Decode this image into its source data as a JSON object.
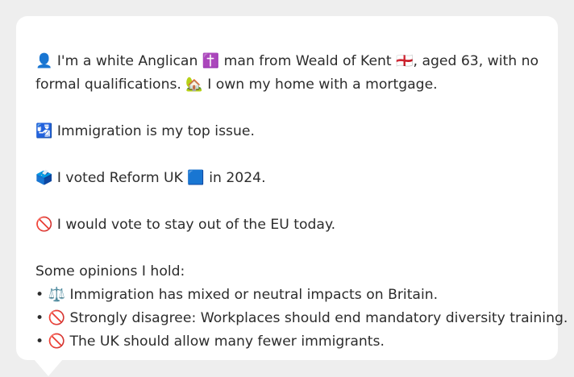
{
  "profile": {
    "line1": "👤 I'm a white Anglican ✝️ man from Weald of Kent 🏴󠁧󠁢󠁥󠁮󠁧󠁿, aged 63, with no",
    "line2": "formal qualifications. 🏡 I own my home with a mortgage."
  },
  "top_issue": "🛂 Immigration is my top issue.",
  "vote": "🗳️ I voted Reform UK 🟦 in 2024.",
  "eu": "🚫 I would vote to stay out of the EU today.",
  "opinions": {
    "heading": "Some opinions I hold:",
    "items": [
      "• ⚖️ Immigration has mixed or neutral impacts on Britain.",
      "• 🚫 Strongly disagree: Workplaces should end mandatory diversity training.",
      "• 🚫 The UK should allow many fewer immigrants."
    ]
  },
  "colors": {
    "bubble": "#ffffff",
    "background": "#eeeeee",
    "text": "#2c2c2c"
  }
}
